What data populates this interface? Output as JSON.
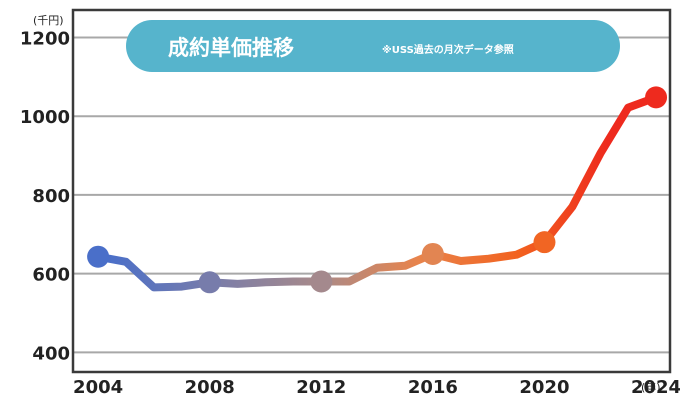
{
  "chart_data": {
    "type": "line",
    "title": "成約単価推移",
    "subtitle": "※USS過去の月次データ参照",
    "ylabel": "(千円)",
    "xlabel": "(年)",
    "ylim": [
      350,
      1270
    ],
    "xlim": [
      2003.1,
      2024.5
    ],
    "yticks": [
      400,
      600,
      800,
      1000,
      1200
    ],
    "xticks": [
      2004,
      2008,
      2012,
      2016,
      2020,
      2024
    ],
    "grid": "horizontal",
    "series": [
      {
        "x": [
          2004,
          2005,
          2006,
          2007,
          2008,
          2009,
          2010,
          2011,
          2012,
          2013,
          2014,
          2015,
          2016,
          2017,
          2018,
          2019,
          2020,
          2021,
          2022,
          2023,
          2024
        ],
        "values": [
          643,
          630,
          565,
          567,
          578,
          574,
          578,
          580,
          580,
          580,
          615,
          620,
          650,
          632,
          638,
          648,
          680,
          770,
          905,
          1022,
          1048
        ],
        "markers_at": [
          2004,
          2008,
          2012,
          2016,
          2020,
          2024
        ]
      }
    ],
    "colors": {
      "start": "#4a6fc9",
      "gray_mid": "#a88a8a",
      "orange": "#f0783a",
      "end": "#ee2a1e",
      "grid": "#a8a8a8",
      "frame": "#3a3a3a",
      "title_bg": "#56b4cc"
    }
  }
}
